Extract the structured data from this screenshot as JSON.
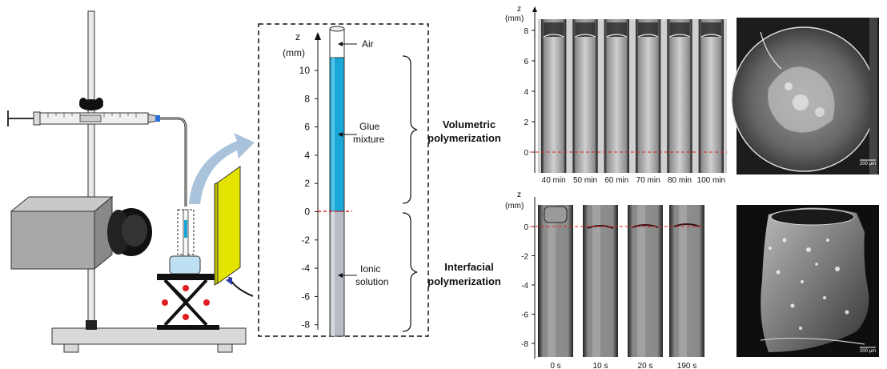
{
  "scale": {
    "z_label": "z",
    "unit_label": "(mm)",
    "ticks": [
      "10",
      "8",
      "6",
      "4",
      "2",
      "0",
      "-2",
      "-4",
      "-6",
      "-8"
    ]
  },
  "layers": {
    "air": "Air",
    "glue_line1": "Glue",
    "glue_line2": "mixture",
    "ionic_line1": "Ionic",
    "ionic_line2": "solution"
  },
  "regimes": {
    "volumetric_line1": "Volumetric",
    "volumetric_line2": "polymerization",
    "interfacial_line1": "Interfacial",
    "interfacial_line2": "polymerization"
  },
  "volumetric_panel": {
    "z_label": "z",
    "unit_label": "(mm)",
    "ticks": [
      "8",
      "6",
      "4",
      "2",
      "0"
    ],
    "times": [
      "40 min",
      "50 min",
      "60 min",
      "70 min",
      "80 min",
      "100 min"
    ]
  },
  "interfacial_panel": {
    "z_label": "z",
    "unit_label": "(mm)",
    "ticks": [
      "0",
      "-2",
      "-4",
      "-6",
      "-8"
    ],
    "times": [
      "0 s",
      "10 s",
      "20 s",
      "190 s"
    ]
  },
  "sem": {
    "top_scale": "200 μm",
    "bottom_scale": "200 μm"
  },
  "colors": {
    "glue": "#1aa6d6",
    "ionic": "#b8bcc4",
    "interface": "#e02020",
    "stand": "#d9d9d9",
    "camera": "#a8a8a8",
    "screen": "#e4e400",
    "arrow": "#9bb8d6"
  }
}
